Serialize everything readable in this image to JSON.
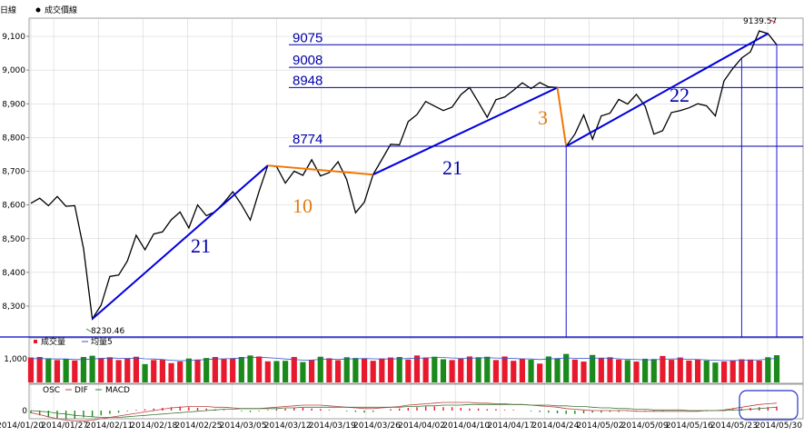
{
  "chart_data": [
    {
      "type": "line",
      "title": "",
      "legend": {
        "prefix": "日線",
        "series_name": "成交價線"
      },
      "series": [
        {
          "name": "成交價線",
          "values": [
            8605,
            8620,
            8598,
            8625,
            8596,
            8598,
            8470,
            8262,
            8303,
            8388,
            8392,
            8434,
            8510,
            8467,
            8514,
            8520,
            8556,
            8579,
            8532,
            8600,
            8568,
            8580,
            8607,
            8639,
            8601,
            8555,
            8640,
            8717,
            8714,
            8665,
            8700,
            8688,
            8734,
            8686,
            8696,
            8728,
            8675,
            8577,
            8608,
            8690,
            8735,
            8780,
            8778,
            8847,
            8868,
            8907,
            8893,
            8880,
            8890,
            8927,
            8948,
            8905,
            8860,
            8912,
            8920,
            8940,
            8962,
            8945,
            8963,
            8950,
            8948,
            8774,
            8810,
            8867,
            8795,
            8864,
            8872,
            8913,
            8899,
            8928,
            8893,
            8810,
            8820,
            8874,
            8880,
            8888,
            8900,
            8894,
            8864,
            8968,
            9005,
            9036,
            9054,
            9116,
            9108,
            9075
          ]
        }
      ],
      "ylim": [
        8230,
        9140
      ],
      "yticks": [
        "8,300",
        "8,400",
        "8,500",
        "8,600",
        "8,700",
        "8,800",
        "8,900",
        "9,000",
        "9,100"
      ],
      "annotations": {
        "high_label": "9139.57",
        "low_label": "8230.46",
        "levels": [
          "9075",
          "9008",
          "8948",
          "8774"
        ],
        "wave_labels": [
          {
            "text": "21",
            "color": "#0000a8"
          },
          {
            "text": "10",
            "color": "#e07b10"
          },
          {
            "text": "21",
            "color": "#0000a8"
          },
          {
            "text": "3",
            "color": "#e07b10"
          },
          {
            "text": "22",
            "color": "#0000a8"
          }
        ]
      },
      "colors": {
        "price": "#000000",
        "wave_up": "#0000dd",
        "wave_down": "#f07800",
        "level": "#0000a8"
      }
    },
    {
      "type": "bar",
      "legend": {
        "volume": "成交量",
        "ma": "均量5"
      },
      "ytick": "1,000",
      "series": [
        {
          "name": "成交量",
          "values": [
            980,
            1000,
            950,
            880,
            920,
            860,
            1000,
            1050,
            960,
            990,
            880,
            950,
            1010,
            720,
            880,
            890,
            760,
            820,
            940,
            900,
            960,
            1000,
            920,
            950,
            1000,
            1060,
            1020,
            830,
            840,
            850,
            1000,
            800,
            880,
            1010,
            950,
            870,
            990,
            960,
            930,
            850,
            940,
            980,
            1000,
            900,
            1060,
            980,
            1010,
            910,
            880,
            930,
            1020,
            990,
            1010,
            880,
            1020,
            850,
            930,
            890,
            740,
            1020,
            930,
            1120,
            900,
            820,
            1080,
            960,
            990,
            900,
            880,
            820,
            930,
            920,
            1040,
            890,
            980,
            860,
            900,
            860,
            780,
            820,
            860,
            910,
            900,
            860,
            990,
            1070
          ]
        },
        {
          "name": "均量5",
          "values": [
            930,
            940,
            930,
            920,
            920,
            900,
            900,
            920,
            940,
            960,
            950,
            940,
            960,
            930,
            920,
            900,
            870,
            850,
            860,
            880,
            900,
            920,
            930,
            940,
            960,
            980,
            990,
            970,
            950,
            920,
            900,
            880,
            880,
            910,
            920,
            900,
            920,
            930,
            940,
            930,
            920,
            920,
            930,
            940,
            950,
            960,
            980,
            980,
            960,
            950,
            950,
            960,
            970,
            960,
            950,
            940,
            930,
            920,
            900,
            920,
            940,
            960,
            950,
            940,
            950,
            960,
            950,
            930,
            910,
            900,
            890,
            890,
            910,
            920,
            920,
            910,
            900,
            890,
            870,
            860,
            860,
            870,
            880,
            890,
            910,
            950
          ]
        }
      ],
      "colors": {
        "up": "#e8192c",
        "down": "#1a8a1a",
        "ma": "#3355cc"
      }
    },
    {
      "type": "bar",
      "legend": {
        "osc": "OSC",
        "dif": "DIF",
        "macd": "MACD"
      },
      "ytick": "0",
      "series": [
        {
          "name": "OSC",
          "values": [
            -4,
            -7,
            -10,
            -12,
            -13,
            -12,
            -10,
            -9,
            -7,
            -5,
            -3,
            -1,
            1,
            2,
            3,
            4,
            5,
            6,
            5,
            4,
            3,
            2,
            1,
            0,
            -1,
            -2,
            -1,
            1,
            2,
            3,
            4,
            4,
            3,
            2,
            1,
            0,
            -1,
            -2,
            -3,
            -2,
            0,
            2,
            3,
            4,
            5,
            6,
            6,
            5,
            5,
            4,
            3,
            3,
            2,
            2,
            1,
            1,
            0,
            -1,
            -2,
            -3,
            -4,
            -5,
            -5,
            -4,
            -3,
            -3,
            -2,
            -2,
            -1,
            -1,
            -1,
            -1,
            -1,
            0,
            0,
            0,
            -1,
            -1,
            0,
            1,
            2,
            3,
            4,
            5,
            5,
            6
          ]
        },
        {
          "name": "DIF",
          "values": [
            -3,
            -6,
            -9,
            -12,
            -14,
            -15,
            -15,
            -14,
            -12,
            -10,
            -8,
            -6,
            -4,
            -2,
            0,
            2,
            4,
            5,
            6,
            6,
            6,
            5,
            5,
            4,
            3,
            3,
            3,
            4,
            5,
            6,
            7,
            8,
            8,
            8,
            7,
            6,
            5,
            4,
            3,
            3,
            4,
            5,
            6,
            8,
            9,
            10,
            11,
            12,
            12,
            12,
            12,
            11,
            11,
            10,
            10,
            9,
            9,
            8,
            7,
            6,
            5,
            3,
            2,
            1,
            0,
            0,
            0,
            0,
            0,
            -1,
            -1,
            -1,
            -1,
            -1,
            -1,
            -1,
            -1,
            0,
            0,
            1,
            3,
            5,
            7,
            9,
            10,
            11
          ]
        },
        {
          "name": "MACD",
          "values": [
            0,
            -1,
            -2,
            -4,
            -5,
            -7,
            -8,
            -9,
            -10,
            -10,
            -10,
            -9,
            -8,
            -7,
            -6,
            -5,
            -4,
            -3,
            -2,
            -1,
            0,
            1,
            2,
            2,
            3,
            3,
            3,
            3,
            3,
            4,
            4,
            5,
            5,
            5,
            5,
            5,
            5,
            5,
            5,
            5,
            5,
            5,
            5,
            6,
            6,
            7,
            7,
            8,
            8,
            8,
            9,
            9,
            9,
            9,
            9,
            9,
            9,
            8,
            8,
            8,
            7,
            7,
            6,
            6,
            5,
            4,
            4,
            3,
            3,
            2,
            2,
            1,
            1,
            1,
            1,
            0,
            0,
            0,
            0,
            0,
            1,
            1,
            2,
            3,
            4,
            5
          ]
        }
      ],
      "colors": {
        "osc_up": "#e8192c",
        "osc_down": "#1a8a1a",
        "dif": "#c04040",
        "macd": "#3a7a3a"
      }
    }
  ],
  "x_axis": {
    "dates": [
      "2014/01/20",
      "2014/01/27",
      "2014/02/11",
      "2014/02/18",
      "2014/02/25",
      "2014/03/05",
      "2014/03/12",
      "2014/03/19",
      "2014/03/26",
      "2014/04/02",
      "2014/04/10",
      "2014/04/17",
      "2014/04/24",
      "2014/05/02",
      "2014/05/09",
      "2014/05/16",
      "2014/05/23",
      "2014/05/30"
    ]
  },
  "grid": true
}
